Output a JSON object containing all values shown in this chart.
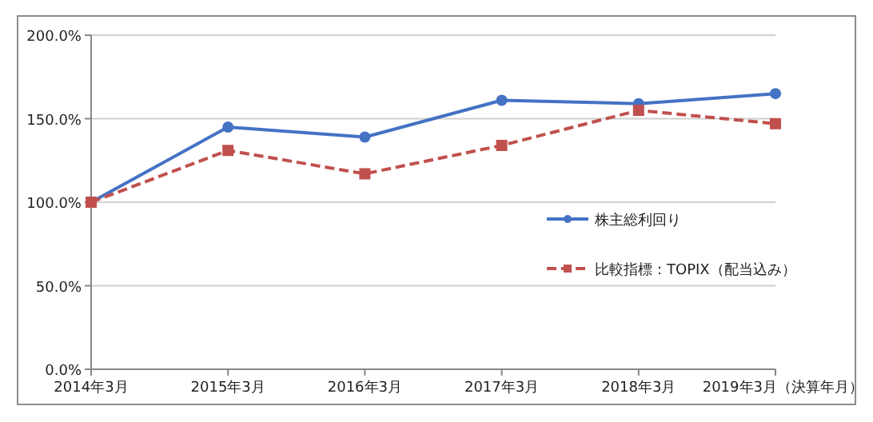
{
  "chart_data": {
    "type": "line",
    "categories": [
      "2014年3月",
      "2015年3月",
      "2016年3月",
      "2017年3月",
      "2018年3月",
      "2019年3月（決算年月）"
    ],
    "series": [
      {
        "name": "株主総利回り",
        "color": "#4472c4",
        "marker": "circle",
        "line_style": "solid",
        "values": [
          100,
          145,
          139,
          161,
          159,
          165
        ]
      },
      {
        "name": "比較指標：TOPIX（配当込み）",
        "color": "#c0504d",
        "marker": "square",
        "line_style": "dashed",
        "values": [
          100,
          131,
          117,
          134,
          155,
          147
        ]
      }
    ],
    "ylim": [
      0,
      200
    ],
    "yticks": [
      {
        "value": 0,
        "label": "0.0%"
      },
      {
        "value": 50,
        "label": "50.0%"
      },
      {
        "value": 100,
        "label": "100.0%"
      },
      {
        "value": 150,
        "label": "150.0%"
      },
      {
        "value": 200,
        "label": "200.0%"
      }
    ],
    "grid": "y",
    "legend": "right"
  }
}
